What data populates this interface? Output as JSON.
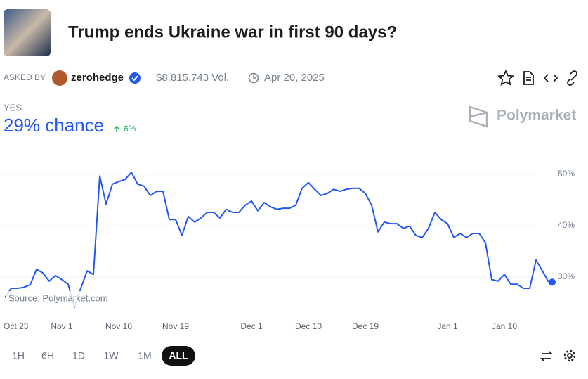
{
  "header": {
    "title": "Trump ends Ukraine war in first 90 days?",
    "asked_by_label": "ASKED BY",
    "user": "zerohedge",
    "volume": "$8,815,743 Vol.",
    "date": "Apr 20, 2025"
  },
  "outcome": {
    "label": "YES",
    "chance": "29% chance",
    "change": "6%"
  },
  "brand": "Polymarket",
  "source": "Source: Polymarket.com",
  "ranges": [
    "1H",
    "6H",
    "1D",
    "1W",
    "1M",
    "ALL"
  ],
  "chart_data": {
    "type": "line",
    "color": "#2458f0",
    "grid": true,
    "categories": [
      "Oct 23",
      null,
      null,
      null,
      null,
      null,
      null,
      null,
      null,
      "Nov 1",
      null,
      null,
      null,
      null,
      null,
      null,
      null,
      null,
      "Nov 10",
      null,
      null,
      null,
      null,
      null,
      null,
      null,
      null,
      "Nov 19",
      null,
      null,
      null,
      null,
      null,
      null,
      null,
      null,
      null,
      null,
      null,
      "Dec 1",
      null,
      null,
      null,
      null,
      null,
      null,
      null,
      null,
      "Dec 10",
      null,
      null,
      null,
      null,
      null,
      null,
      null,
      null,
      "Dec 19",
      null,
      null,
      null,
      null,
      null,
      null,
      null,
      null,
      null,
      null,
      null,
      null,
      "Jan 1",
      null,
      null,
      null,
      null,
      null,
      null,
      null,
      null,
      "Jan 10",
      null,
      null,
      null,
      null,
      null,
      null,
      null
    ],
    "values": [
      26,
      27.8,
      27.8,
      28,
      28.5,
      31.5,
      30.8,
      29.2,
      30.3,
      29.5,
      28.6,
      24.1,
      27.8,
      31.2,
      30.5,
      49.7,
      44.2,
      48.1,
      48.6,
      49,
      50.4,
      48.1,
      47.7,
      45.9,
      46.7,
      46.7,
      41.2,
      41.2,
      38.1,
      41.8,
      40.7,
      41.5,
      42.6,
      42.6,
      41.5,
      43.2,
      42.6,
      42.6,
      44,
      44.8,
      42.9,
      44.5,
      43.7,
      43.2,
      43.4,
      43.4,
      44,
      47.3,
      48.4,
      47.1,
      45.9,
      46.3,
      47.1,
      46.7,
      47.1,
      47.3,
      47.3,
      46.3,
      44,
      38.8,
      40.7,
      40.4,
      40.4,
      39.5,
      39.9,
      38.1,
      37.7,
      39.5,
      42.6,
      41.2,
      40.4,
      37.7,
      38.5,
      37.7,
      38.5,
      38.5,
      36.7,
      29.5,
      29.2,
      30.5,
      28.6,
      28.6,
      27.8,
      27.8,
      33.3,
      31.2,
      29
    ],
    "ylim": [
      23,
      54
    ],
    "yticks": [
      {
        "value": 30,
        "label": "30%"
      },
      {
        "value": 40,
        "label": "40%"
      },
      {
        "value": 50,
        "label": "50%"
      }
    ]
  }
}
